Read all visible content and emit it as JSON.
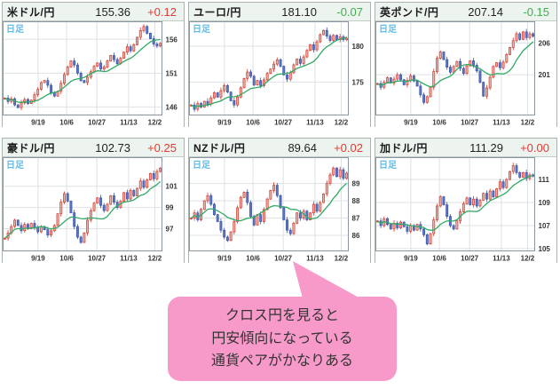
{
  "colors": {
    "candle_up_stroke": "#cf3a2e",
    "candle_up_fill": "#f2b0a6",
    "candle_down_stroke": "#3a55a8",
    "candle_down_fill": "#6076c2",
    "ma_line": "#2faa63",
    "grid": "#dde1e4",
    "plot_border": "#8a96a3",
    "panel_border": "#aab4ae",
    "header_bg": "#edf4f0",
    "change_up": "#e8382f",
    "change_down": "#3dae49",
    "period_text": "#5fbce8",
    "tick_text": "#333333",
    "bubble_bg": "#f79ac9",
    "bubble_text": "#333333"
  },
  "bubble": {
    "lines": [
      "クロス円を見ると",
      "円安傾向になっている",
      "通貨ペアがかなりある"
    ]
  },
  "chart_data": [
    {
      "type": "candlestick",
      "title": "米ドル/円",
      "price": "155.36",
      "change": "+0.12",
      "change_dir": "up",
      "period": "日足",
      "x_ticks": [
        "9/19",
        "10/6",
        "10/27",
        "11/13",
        "12/2"
      ],
      "x_tick_pos": [
        0.22,
        0.4,
        0.59,
        0.79,
        0.955
      ],
      "y_ticks": [
        146,
        151,
        156
      ],
      "ylim": [
        144.8,
        158.6
      ],
      "ma_window": 10,
      "closes": [
        147.3,
        146.8,
        147.2,
        146.3,
        145.9,
        146.6,
        147.1,
        146.5,
        147.0,
        147.8,
        148.6,
        149.6,
        149.9,
        149.2,
        148.1,
        147.6,
        148.3,
        149.5,
        150.8,
        151.9,
        152.8,
        152.2,
        151.0,
        149.9,
        149.6,
        150.4,
        151.2,
        152.0,
        152.5,
        151.6,
        151.9,
        152.8,
        153.6,
        153.0,
        152.4,
        153.2,
        154.1,
        154.9,
        154.3,
        155.2,
        156.3,
        157.3,
        157.9,
        156.9,
        156.1,
        155.3,
        155.0,
        155.4
      ]
    },
    {
      "type": "candlestick",
      "title": "ユーロ/円",
      "price": "181.10",
      "change": "-0.07",
      "change_dir": "down",
      "period": "日足",
      "x_ticks": [
        "9/19",
        "10/6",
        "10/27",
        "11/13",
        "12/2"
      ],
      "x_tick_pos": [
        0.22,
        0.4,
        0.59,
        0.79,
        0.955
      ],
      "y_ticks": [
        175,
        180
      ],
      "ylim": [
        170.4,
        183.4
      ],
      "ma_window": 10,
      "closes": [
        171.8,
        171.2,
        172.0,
        171.5,
        172.3,
        171.9,
        172.8,
        173.5,
        172.9,
        173.8,
        174.5,
        173.6,
        172.4,
        171.8,
        172.9,
        174.2,
        175.5,
        176.4,
        175.8,
        174.6,
        175.2,
        174.5,
        175.3,
        176.2,
        176.8,
        177.5,
        178.1,
        177.2,
        176.0,
        175.4,
        176.3,
        177.4,
        178.2,
        177.6,
        178.5,
        179.4,
        180.2,
        179.5,
        180.6,
        181.6,
        182.2,
        181.4,
        180.8,
        181.5,
        180.9,
        181.3,
        180.9,
        181.1
      ]
    },
    {
      "type": "candlestick",
      "title": "英ポンド/円",
      "price": "207.14",
      "change": "-0.15",
      "change_dir": "down",
      "period": "日足",
      "x_ticks": [
        "9/19",
        "10/6",
        "10/27",
        "11/13",
        "12/2"
      ],
      "x_tick_pos": [
        0.22,
        0.4,
        0.59,
        0.79,
        0.955
      ],
      "y_ticks": [
        201,
        206
      ],
      "ylim": [
        194.6,
        209.4
      ],
      "ma_window": 10,
      "closes": [
        199.6,
        199.0,
        199.8,
        200.5,
        199.7,
        200.3,
        201.0,
        200.2,
        199.4,
        200.1,
        200.8,
        200.0,
        199.2,
        197.8,
        196.6,
        197.5,
        199.0,
        201.5,
        203.6,
        204.6,
        203.4,
        202.2,
        201.4,
        202.3,
        203.1,
        202.0,
        201.2,
        202.4,
        203.2,
        202.5,
        201.6,
        199.8,
        197.6,
        198.9,
        200.6,
        202.3,
        202.9,
        202.1,
        203.0,
        204.2,
        205.3,
        206.4,
        207.5,
        206.6,
        207.8,
        206.9,
        207.5,
        207.1
      ]
    },
    {
      "type": "candlestick",
      "title": "豪ドル/円",
      "price": "102.73",
      "change": "+0.25",
      "change_dir": "up",
      "period": "日足",
      "x_ticks": [
        "9/19",
        "10/6",
        "10/27",
        "11/13",
        "12/2"
      ],
      "x_tick_pos": [
        0.22,
        0.4,
        0.59,
        0.79,
        0.955
      ],
      "y_ticks": [
        97,
        99,
        101
      ],
      "ylim": [
        94.9,
        103.7
      ],
      "ma_window": 10,
      "closes": [
        96.1,
        96.6,
        97.2,
        97.8,
        97.3,
        96.8,
        97.4,
        97.0,
        97.5,
        97.1,
        96.7,
        97.2,
        96.9,
        96.4,
        96.8,
        97.3,
        98.4,
        99.5,
        100.3,
        99.6,
        98.5,
        97.2,
        96.2,
        95.7,
        96.6,
        97.8,
        98.7,
        99.4,
        99.9,
        99.2,
        98.7,
        99.3,
        100.1,
        99.5,
        99.0,
        99.6,
        100.4,
        99.8,
        100.6,
        100.1,
        100.8,
        101.5,
        100.9,
        101.6,
        102.2,
        101.7,
        102.4,
        102.7
      ]
    },
    {
      "type": "candlestick",
      "title": "NZドル/円",
      "price": "89.64",
      "change": "+0.02",
      "change_dir": "up",
      "period": "日足",
      "x_ticks": [
        "9/19",
        "10/6",
        "10/27",
        "11/13",
        "12/2"
      ],
      "x_tick_pos": [
        0.22,
        0.4,
        0.59,
        0.79,
        0.955
      ],
      "y_ticks": [
        86,
        87,
        88,
        89
      ],
      "ylim": [
        85.1,
        90.5
      ],
      "ma_window": 10,
      "closes": [
        87.0,
        87.3,
        86.9,
        87.5,
        88.0,
        88.3,
        87.8,
        87.2,
        86.8,
        86.3,
        85.9,
        85.7,
        86.2,
        86.8,
        87.6,
        88.2,
        88.5,
        87.9,
        87.1,
        86.6,
        87.2,
        86.8,
        87.5,
        88.1,
        88.6,
        88.9,
        88.3,
        87.6,
        86.9,
        86.3,
        86.1,
        86.7,
        87.3,
        87.0,
        87.4,
        86.9,
        87.3,
        87.8,
        87.4,
        87.9,
        88.4,
        89.0,
        89.5,
        89.9,
        89.4,
        89.8,
        89.3,
        89.6
      ]
    },
    {
      "type": "candlestick",
      "title": "加ドル/円",
      "price": "111.29",
      "change": "+0.00",
      "change_dir": "up",
      "period": "日足",
      "x_ticks": [
        "9/19",
        "10/6",
        "10/27",
        "11/13",
        "12/2"
      ],
      "x_tick_pos": [
        0.22,
        0.4,
        0.59,
        0.79,
        0.955
      ],
      "y_ticks": [
        105,
        107,
        109,
        111
      ],
      "ylim": [
        104.8,
        112.9
      ],
      "ma_window": 10,
      "closes": [
        107.4,
        107.0,
        107.6,
        107.1,
        106.7,
        107.2,
        106.8,
        107.3,
        106.9,
        106.5,
        107.0,
        106.6,
        107.1,
        106.7,
        106.2,
        105.4,
        106.3,
        107.5,
        108.7,
        109.5,
        108.8,
        107.8,
        107.0,
        106.7,
        107.4,
        108.2,
        108.9,
        109.4,
        108.8,
        109.3,
        108.7,
        109.2,
        109.8,
        109.3,
        110.0,
        109.5,
        110.2,
        110.8,
        110.3,
        111.0,
        111.7,
        112.2,
        111.6,
        111.2,
        111.6,
        111.1,
        111.4,
        111.3
      ]
    }
  ]
}
